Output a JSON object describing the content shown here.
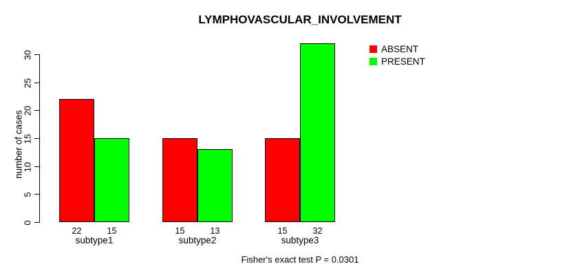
{
  "title": "LYMPHOVASCULAR_INVOLVEMENT",
  "subtitle": "Fisher's exact test P = 0.0301",
  "y_axis": {
    "label": "number of cases",
    "ticks": [
      0,
      5,
      10,
      15,
      20,
      25,
      30
    ]
  },
  "legend": {
    "items": [
      {
        "label": "ABSENT",
        "color": "#FF0000"
      },
      {
        "label": "PRESENT",
        "color": "#00FF00"
      }
    ]
  },
  "chart_data": {
    "type": "bar",
    "grouped": true,
    "categories": [
      "subtype1",
      "subtype2",
      "subtype3"
    ],
    "series": [
      {
        "name": "ABSENT",
        "color": "#FF0000",
        "values": [
          22,
          15,
          15
        ]
      },
      {
        "name": "PRESENT",
        "color": "#00FF00",
        "values": [
          15,
          13,
          32
        ]
      }
    ],
    "bar_value_labels": [
      [
        "22",
        "15"
      ],
      [
        "15",
        "13"
      ],
      [
        "15",
        "32"
      ]
    ],
    "title": "LYMPHOVASCULAR_INVOLVEMENT",
    "xlabel": "",
    "ylabel": "number of cases",
    "ylim": [
      0,
      32
    ],
    "yticks": [
      0,
      5,
      10,
      15,
      20,
      25,
      30
    ],
    "annotation": "Fisher's exact test P = 0.0301",
    "legend_position": "topright",
    "grid": false,
    "background": "#FFFFFF",
    "bar_border_color": "#000000"
  }
}
